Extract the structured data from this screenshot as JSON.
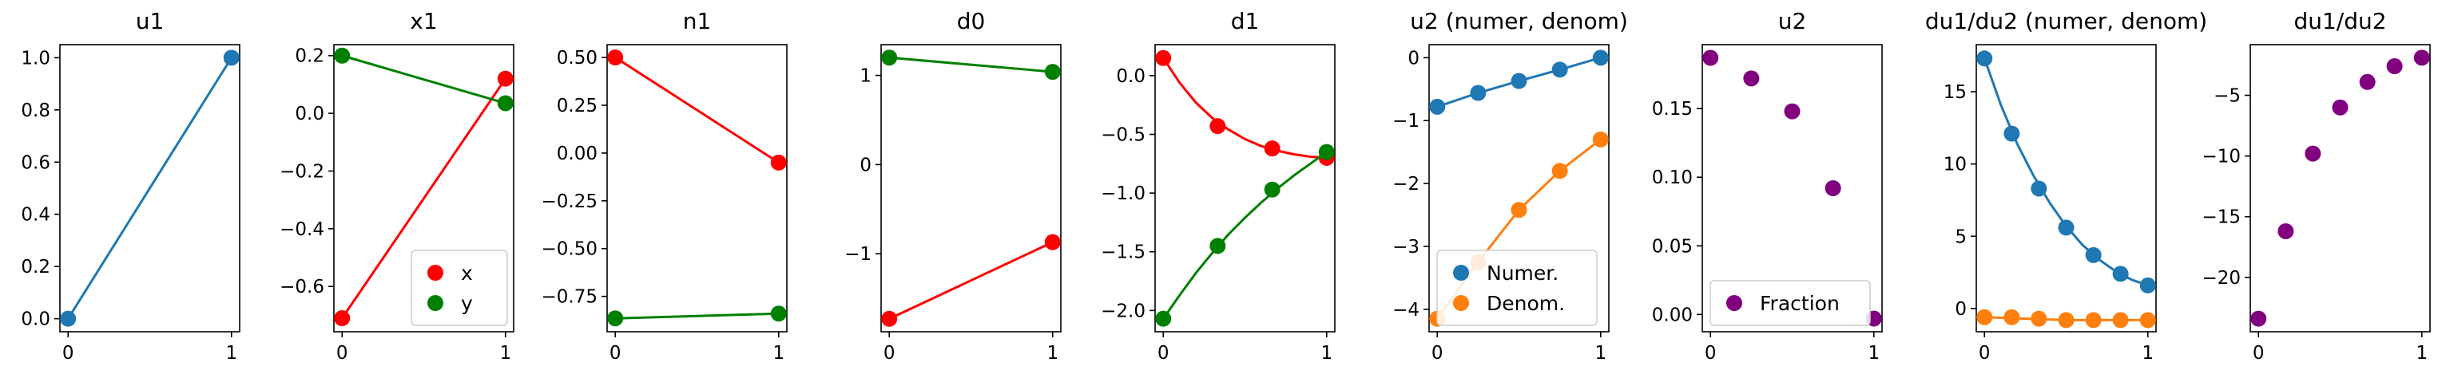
{
  "chart_data": [
    {
      "type": "line",
      "title": "u1",
      "xticks": [
        "0",
        "1"
      ],
      "yticks": [
        "0.0",
        "0.2",
        "0.4",
        "0.6",
        "0.8",
        "1.0"
      ],
      "series": [
        {
          "color": "#1f77b4",
          "x": [
            0,
            1
          ],
          "y": [
            0.0,
            1.0
          ],
          "markers": true,
          "line": true
        }
      ]
    },
    {
      "type": "line",
      "title": "x1",
      "xticks": [
        "0",
        "1"
      ],
      "yticks": [
        "−0.6",
        "−0.4",
        "−0.2",
        "0.0",
        "0.2"
      ],
      "legend": {
        "placement": "lower-right",
        "entries": [
          {
            "label": "x",
            "color": "#ff0000"
          },
          {
            "label": "y",
            "color": "#008000"
          }
        ]
      },
      "series": [
        {
          "name": "x",
          "color": "#ff0000",
          "x": [
            0,
            1
          ],
          "y": [
            -0.71,
            0.12
          ],
          "markers": true,
          "line": true
        },
        {
          "name": "y",
          "color": "#008000",
          "x": [
            0,
            1
          ],
          "y": [
            0.2,
            0.035
          ],
          "markers": true,
          "line": true
        }
      ]
    },
    {
      "type": "line",
      "title": "n1",
      "xticks": [
        "0",
        "1"
      ],
      "yticks": [
        "−0.75",
        "−0.50",
        "−0.25",
        "0.00",
        "0.25",
        "0.50"
      ],
      "series": [
        {
          "color": "#ff0000",
          "x": [
            0,
            1
          ],
          "y": [
            0.5,
            -0.05
          ],
          "markers": true,
          "line": true
        },
        {
          "color": "#008000",
          "x": [
            0,
            1
          ],
          "y": [
            -0.865,
            -0.84
          ],
          "markers": true,
          "line": true
        }
      ]
    },
    {
      "type": "line",
      "title": "d0",
      "xticks": [
        "0",
        "1"
      ],
      "yticks": [
        "−1",
        "0",
        "1"
      ],
      "series": [
        {
          "color": "#008000",
          "x": [
            0,
            1
          ],
          "y": [
            1.2,
            1.04
          ],
          "markers": true,
          "line": true
        },
        {
          "color": "#ff0000",
          "x": [
            0,
            1
          ],
          "y": [
            -1.73,
            -0.87
          ],
          "markers": true,
          "line": true
        }
      ]
    },
    {
      "type": "line",
      "title": "d1",
      "xticks": [
        "0",
        "1"
      ],
      "yticks": [
        "−2.0",
        "−1.5",
        "−1.0",
        "−0.5",
        "0.0"
      ],
      "series": [
        {
          "color": "#ff0000",
          "x": [
            0,
            0.333,
            0.667,
            1
          ],
          "y": [
            0.15,
            -0.43,
            -0.62,
            -0.7
          ],
          "markers": true,
          "line": false,
          "curve": {
            "x": [
              0,
              0.1,
              0.2,
              0.3,
              0.4,
              0.5,
              0.6,
              0.7,
              0.8,
              0.9,
              1.0
            ],
            "y": [
              0.15,
              -0.06,
              -0.23,
              -0.36,
              -0.46,
              -0.54,
              -0.6,
              -0.64,
              -0.67,
              -0.69,
              -0.7
            ]
          }
        },
        {
          "color": "#008000",
          "x": [
            0,
            0.333,
            0.667,
            1
          ],
          "y": [
            -2.07,
            -1.45,
            -0.97,
            -0.65
          ],
          "markers": true,
          "line": false,
          "curve": {
            "x": [
              0,
              0.1,
              0.2,
              0.3,
              0.4,
              0.5,
              0.6,
              0.7,
              0.8,
              0.9,
              1.0
            ],
            "y": [
              -2.07,
              -1.87,
              -1.68,
              -1.51,
              -1.35,
              -1.21,
              -1.08,
              -0.96,
              -0.85,
              -0.75,
              -0.65
            ]
          }
        }
      ]
    },
    {
      "type": "line",
      "title": "u2 (numer, denom)",
      "xticks": [
        "0",
        "1"
      ],
      "yticks": [
        "−4",
        "−3",
        "−2",
        "−1",
        "0"
      ],
      "legend": {
        "placement": "lower-center",
        "entries": [
          {
            "label": "Numer.",
            "color": "#1f77b4"
          },
          {
            "label": "Denom.",
            "color": "#ff7f0e"
          }
        ]
      },
      "series": [
        {
          "name": "Numer.",
          "color": "#1f77b4",
          "x": [
            0,
            0.25,
            0.5,
            0.75,
            1
          ],
          "y": [
            -0.78,
            -0.56,
            -0.37,
            -0.19,
            0.0
          ],
          "markers": true,
          "line": true
        },
        {
          "name": "Denom.",
          "color": "#ff7f0e",
          "x": [
            0,
            0.25,
            0.5,
            0.75,
            1
          ],
          "y": [
            -4.15,
            -3.25,
            -2.42,
            -1.8,
            -1.3
          ],
          "markers": true,
          "line": true
        }
      ]
    },
    {
      "type": "scatter",
      "title": "u2",
      "xticks": [
        "0",
        "1"
      ],
      "yticks": [
        "0.00",
        "0.05",
        "0.10",
        "0.15"
      ],
      "legend": {
        "placement": "lower-center",
        "entries": [
          {
            "label": "Fraction",
            "color": "#800080"
          }
        ]
      },
      "series": [
        {
          "name": "Fraction",
          "color": "#800080",
          "x": [
            0,
            0.25,
            0.5,
            0.75,
            1
          ],
          "y": [
            0.187,
            0.172,
            0.148,
            0.092,
            -0.003
          ],
          "markers": true,
          "line": false
        }
      ]
    },
    {
      "type": "line",
      "title": "du1/du2 (numer, denom)",
      "xticks": [
        "0",
        "1"
      ],
      "yticks": [
        "0",
        "5",
        "10",
        "15"
      ],
      "series": [
        {
          "color": "#1f77b4",
          "x": [
            0,
            0.167,
            0.333,
            0.5,
            0.667,
            0.833,
            1
          ],
          "y": [
            17.3,
            12.1,
            8.3,
            5.6,
            3.7,
            2.4,
            1.6
          ],
          "markers": true,
          "line": false,
          "curve": {
            "x": [
              0,
              0.1,
              0.2,
              0.3,
              0.4,
              0.5,
              0.6,
              0.7,
              0.8,
              0.9,
              1.0
            ],
            "y": [
              17.3,
              14.1,
              11.4,
              9.2,
              7.3,
              5.7,
              4.4,
              3.4,
              2.6,
              2.0,
              1.6
            ]
          }
        },
        {
          "color": "#ff7f0e",
          "x": [
            0,
            0.167,
            0.333,
            0.5,
            0.667,
            0.833,
            1
          ],
          "y": [
            -0.6,
            -0.6,
            -0.7,
            -0.8,
            -0.8,
            -0.8,
            -0.8
          ],
          "markers": true,
          "line": false,
          "curve": {
            "x": [
              0,
              0.25,
              0.5,
              0.75,
              1.0
            ],
            "y": [
              -0.6,
              -0.7,
              -0.8,
              -0.8,
              -0.8
            ]
          }
        }
      ]
    },
    {
      "type": "scatter",
      "title": "du1/du2",
      "xticks": [
        "0",
        "1"
      ],
      "yticks": [
        "−20",
        "−15",
        "−10",
        "−5"
      ],
      "series": [
        {
          "color": "#800080",
          "x": [
            0,
            0.167,
            0.333,
            0.5,
            0.667,
            0.833,
            1
          ],
          "y": [
            -23.4,
            -16.2,
            -9.8,
            -6.0,
            -3.9,
            -2.6,
            -1.9
          ],
          "markers": true,
          "line": false
        }
      ]
    }
  ]
}
